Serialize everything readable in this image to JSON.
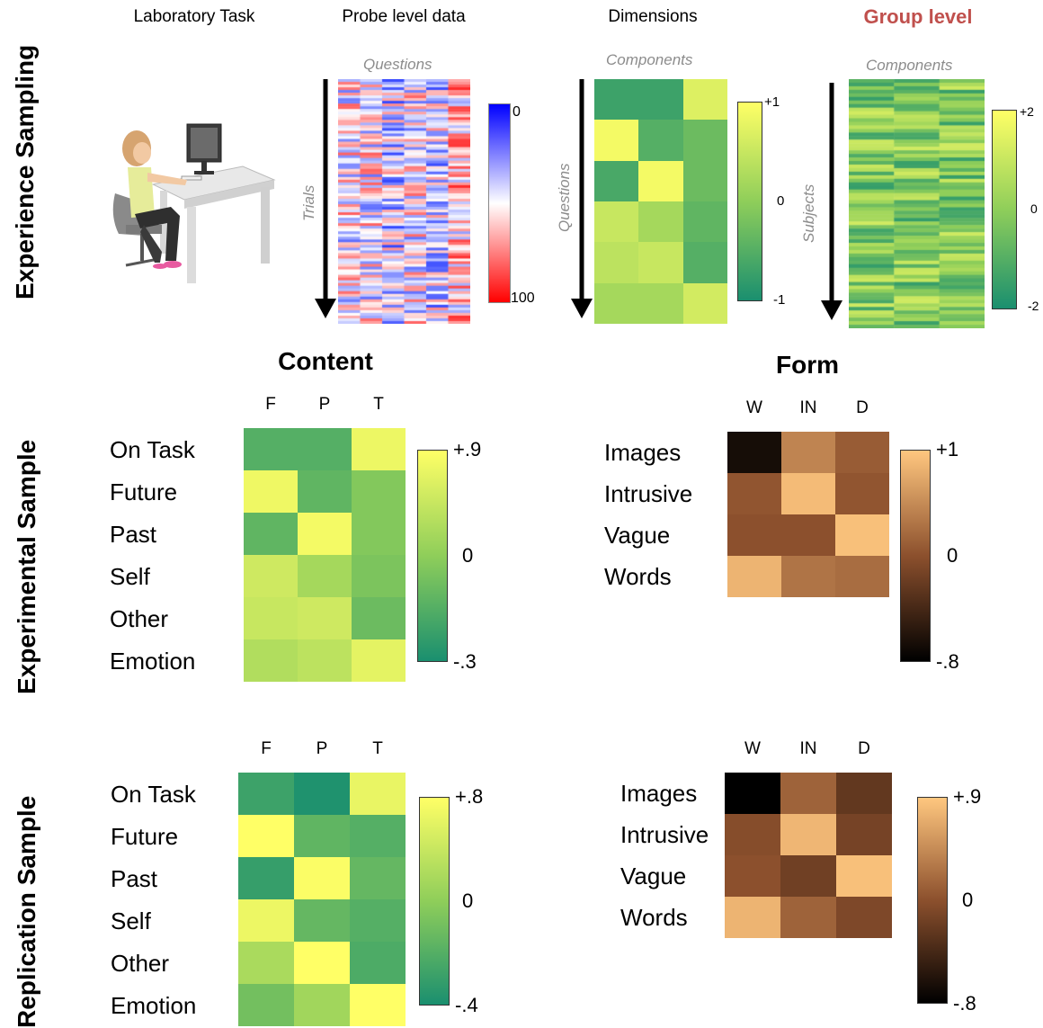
{
  "row_titles": {
    "experience_sampling": "Experience Sampling",
    "experimental_sample": "Experimental Sample",
    "replication_sample": "Replication Sample"
  },
  "top_panels": {
    "lab_task": "Laboratory Task",
    "probe_level": {
      "title": "Probe level data",
      "x_label": "Questions",
      "y_label": "Trials",
      "cbar_min": "0",
      "cbar_max": "100",
      "colors": {
        "low": "#0000ff",
        "mid": "#ffffff",
        "high": "#ff0000"
      }
    },
    "dimensions": {
      "title": "Dimensions",
      "x_label": "Components",
      "y_label": "Questions",
      "cbar_top": "+1",
      "cbar_mid": "0",
      "cbar_bottom": "-1",
      "cells": [
        [
          0.15,
          0.15,
          0.85
        ],
        [
          0.95,
          0.25,
          0.35
        ],
        [
          0.2,
          0.95,
          0.35
        ],
        [
          0.75,
          0.6,
          0.3
        ],
        [
          0.7,
          0.75,
          0.25
        ],
        [
          0.6,
          0.6,
          0.8
        ]
      ]
    },
    "group_level": {
      "title": "Group level",
      "x_label": "Components",
      "y_label": "Subjects",
      "cbar_top": "+2",
      "cbar_mid": "0",
      "cbar_bottom": "-2"
    }
  },
  "sections": {
    "content": "Content",
    "form": "Form"
  },
  "experimental": {
    "content": {
      "columns": [
        "F",
        "P",
        "T"
      ],
      "rows": [
        "On Task",
        "Future",
        "Past",
        "Self",
        "Other",
        "Emotion"
      ],
      "cbar_top": "+.9",
      "cbar_mid": "0",
      "cbar_bottom": "-.3",
      "cells": [
        [
          0.25,
          0.25,
          0.92
        ],
        [
          0.93,
          0.3,
          0.45
        ],
        [
          0.3,
          0.95,
          0.45
        ],
        [
          0.78,
          0.6,
          0.42
        ],
        [
          0.75,
          0.78,
          0.35
        ],
        [
          0.65,
          0.7,
          0.88
        ]
      ]
    },
    "form": {
      "columns": [
        "W",
        "IN",
        "D"
      ],
      "rows": [
        "Images",
        "Intrusive",
        "Vague",
        "Words"
      ],
      "cbar_top": "+1",
      "cbar_mid": "0",
      "cbar_bottom": "-.8",
      "cells": [
        [
          0.08,
          0.72,
          0.55
        ],
        [
          0.52,
          0.95,
          0.52
        ],
        [
          0.5,
          0.5,
          0.97
        ],
        [
          0.92,
          0.65,
          0.62
        ]
      ]
    }
  },
  "replication": {
    "content": {
      "columns": [
        "F",
        "P",
        "T"
      ],
      "rows": [
        "On Task",
        "Future",
        "Past",
        "Self",
        "Other",
        "Emotion"
      ],
      "cbar_top": "+.8",
      "cbar_mid": "0",
      "cbar_bottom": "-.4",
      "cells": [
        [
          0.15,
          0.02,
          0.9
        ],
        [
          1.0,
          0.3,
          0.25
        ],
        [
          0.12,
          0.98,
          0.32
        ],
        [
          0.92,
          0.32,
          0.25
        ],
        [
          0.62,
          1.0,
          0.22
        ],
        [
          0.38,
          0.58,
          1.0
        ]
      ]
    },
    "form": {
      "columns": [
        "W",
        "IN",
        "D"
      ],
      "rows": [
        "Images",
        "Intrusive",
        "Vague",
        "Words"
      ],
      "cbar_top": "+.9",
      "cbar_mid": "0",
      "cbar_bottom": "-.8",
      "cells": [
        [
          0.0,
          0.58,
          0.35
        ],
        [
          0.48,
          0.93,
          0.42
        ],
        [
          0.5,
          0.4,
          0.97
        ],
        [
          0.92,
          0.58,
          0.45
        ]
      ]
    }
  }
}
